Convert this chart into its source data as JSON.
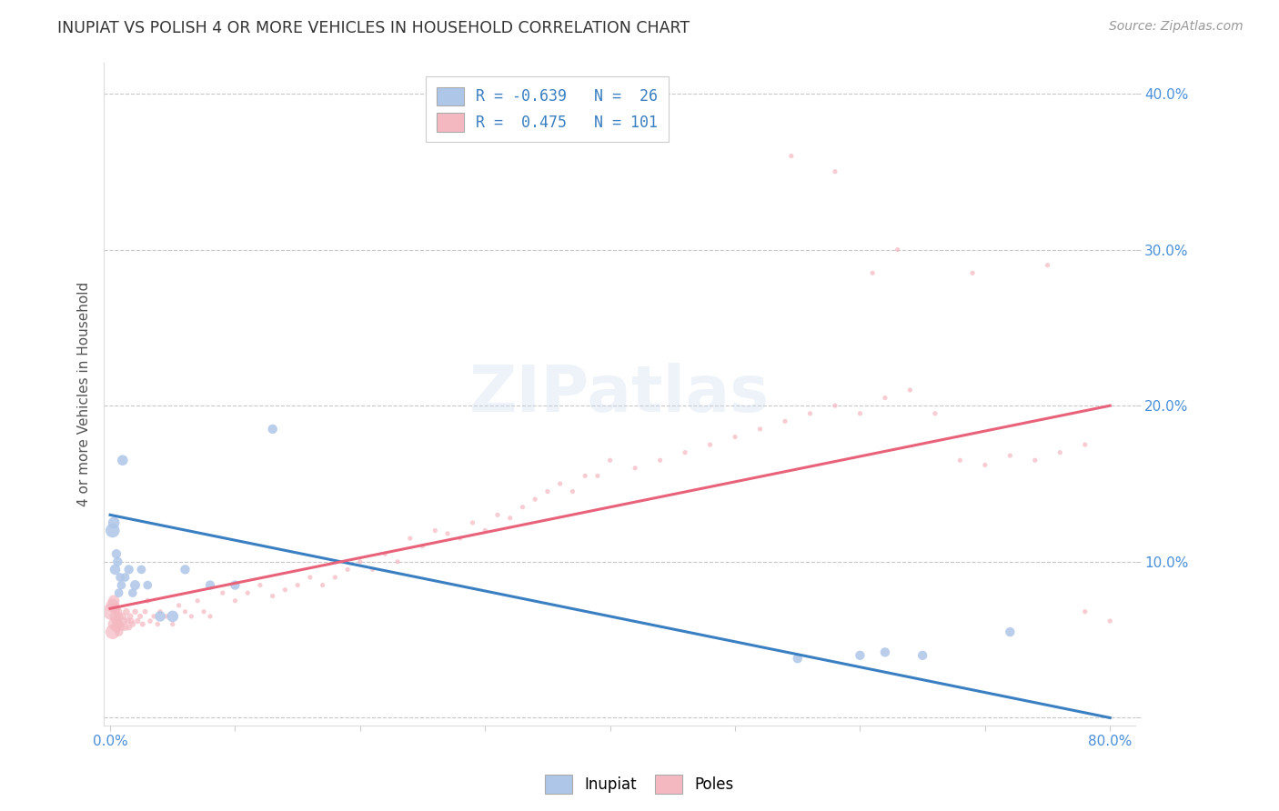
{
  "title": "INUPIAT VS POLISH 4 OR MORE VEHICLES IN HOUSEHOLD CORRELATION CHART",
  "source": "Source: ZipAtlas.com",
  "ylabel": "4 or more Vehicles in Household",
  "xlim": [
    -0.005,
    0.82
  ],
  "ylim": [
    -0.005,
    0.42
  ],
  "xticks": [
    0.0,
    0.1,
    0.2,
    0.3,
    0.4,
    0.5,
    0.6,
    0.7,
    0.8
  ],
  "yticks": [
    0.0,
    0.1,
    0.2,
    0.3,
    0.4
  ],
  "ytick_labels_right": [
    "",
    "10.0%",
    "20.0%",
    "30.0%",
    "40.0%"
  ],
  "xtick_labels": [
    "0.0%",
    "",
    "",
    "",
    "",
    "",
    "",
    "",
    "80.0%"
  ],
  "watermark": "ZIPatlas",
  "inupiat_color": "#aec6e8",
  "poles_color": "#f4b8c1",
  "inupiat_line_color": "#3a7fc1",
  "poles_line_color": "#e8627a",
  "bg_color": "#ffffff",
  "grid_color": "#c8c8c8",
  "axis_label_color": "#4a90d9",
  "title_color": "#333333",
  "inupiat_line_x": [
    0.0,
    0.8
  ],
  "inupiat_line_y": [
    0.13,
    0.0
  ],
  "poles_line_x": [
    0.0,
    0.8
  ],
  "poles_line_y": [
    0.07,
    0.2
  ],
  "inupiat_x": [
    0.002,
    0.003,
    0.004,
    0.005,
    0.006,
    0.007,
    0.008,
    0.009,
    0.01,
    0.012,
    0.015,
    0.018,
    0.02,
    0.025,
    0.03,
    0.04,
    0.05,
    0.06,
    0.08,
    0.1,
    0.13,
    0.55,
    0.6,
    0.62,
    0.65,
    0.72
  ],
  "inupiat_y": [
    0.12,
    0.125,
    0.095,
    0.105,
    0.1,
    0.08,
    0.09,
    0.085,
    0.165,
    0.09,
    0.095,
    0.08,
    0.085,
    0.095,
    0.085,
    0.065,
    0.065,
    0.095,
    0.085,
    0.085,
    0.185,
    0.038,
    0.04,
    0.042,
    0.04,
    0.055
  ],
  "inupiat_sizes": [
    180,
    120,
    100,
    80,
    80,
    70,
    70,
    70,
    100,
    70,
    80,
    70,
    90,
    70,
    70,
    100,
    120,
    80,
    80,
    80,
    80,
    80,
    80,
    80,
    80,
    80
  ],
  "poles_x": [
    0.001,
    0.002,
    0.002,
    0.003,
    0.003,
    0.004,
    0.004,
    0.005,
    0.005,
    0.006,
    0.006,
    0.007,
    0.007,
    0.008,
    0.009,
    0.01,
    0.011,
    0.012,
    0.013,
    0.014,
    0.015,
    0.016,
    0.017,
    0.018,
    0.02,
    0.022,
    0.024,
    0.026,
    0.028,
    0.03,
    0.032,
    0.035,
    0.038,
    0.04,
    0.045,
    0.05,
    0.055,
    0.06,
    0.065,
    0.07,
    0.075,
    0.08,
    0.09,
    0.1,
    0.11,
    0.12,
    0.13,
    0.14,
    0.15,
    0.16,
    0.17,
    0.18,
    0.19,
    0.2,
    0.21,
    0.22,
    0.23,
    0.24,
    0.25,
    0.26,
    0.27,
    0.28,
    0.29,
    0.3,
    0.31,
    0.32,
    0.33,
    0.34,
    0.35,
    0.36,
    0.37,
    0.38,
    0.39,
    0.4,
    0.42,
    0.44,
    0.46,
    0.48,
    0.5,
    0.52,
    0.54,
    0.56,
    0.58,
    0.6,
    0.62,
    0.64,
    0.66,
    0.68,
    0.7,
    0.72,
    0.74,
    0.76,
    0.78,
    0.8,
    0.61,
    0.545,
    0.69,
    0.75,
    0.58,
    0.63,
    0.78
  ],
  "poles_y": [
    0.068,
    0.055,
    0.072,
    0.06,
    0.075,
    0.065,
    0.07,
    0.058,
    0.062,
    0.06,
    0.068,
    0.055,
    0.065,
    0.06,
    0.058,
    0.065,
    0.062,
    0.058,
    0.068,
    0.062,
    0.058,
    0.065,
    0.062,
    0.06,
    0.068,
    0.062,
    0.065,
    0.06,
    0.068,
    0.075,
    0.062,
    0.065,
    0.06,
    0.068,
    0.065,
    0.06,
    0.072,
    0.068,
    0.065,
    0.075,
    0.068,
    0.065,
    0.08,
    0.075,
    0.08,
    0.085,
    0.078,
    0.082,
    0.085,
    0.09,
    0.085,
    0.09,
    0.095,
    0.1,
    0.095,
    0.105,
    0.1,
    0.115,
    0.11,
    0.12,
    0.118,
    0.115,
    0.125,
    0.12,
    0.13,
    0.128,
    0.135,
    0.14,
    0.145,
    0.15,
    0.145,
    0.155,
    0.155,
    0.165,
    0.16,
    0.165,
    0.17,
    0.175,
    0.18,
    0.185,
    0.19,
    0.195,
    0.2,
    0.195,
    0.205,
    0.21,
    0.195,
    0.165,
    0.162,
    0.168,
    0.165,
    0.17,
    0.175,
    0.062,
    0.285,
    0.36,
    0.285,
    0.29,
    0.35,
    0.3,
    0.068
  ],
  "poles_sizes": [
    800,
    600,
    500,
    400,
    380,
    350,
    320,
    300,
    280,
    260,
    240,
    220,
    200,
    190,
    180,
    170,
    160,
    150,
    140,
    130,
    120,
    115,
    110,
    105,
    100,
    95,
    90,
    85,
    80,
    80,
    75,
    75,
    70,
    70,
    70,
    68,
    68,
    65,
    65,
    65,
    65,
    65,
    65,
    65,
    65,
    65,
    65,
    65,
    65,
    65,
    65,
    65,
    65,
    65,
    65,
    65,
    65,
    65,
    65,
    65,
    65,
    65,
    65,
    65,
    65,
    65,
    65,
    65,
    65,
    65,
    65,
    65,
    65,
    65,
    65,
    65,
    65,
    65,
    65,
    65,
    65,
    65,
    65,
    65,
    65,
    65,
    65,
    65,
    65,
    65,
    65,
    65,
    65,
    65,
    65,
    65,
    65,
    65,
    65,
    65,
    65
  ]
}
